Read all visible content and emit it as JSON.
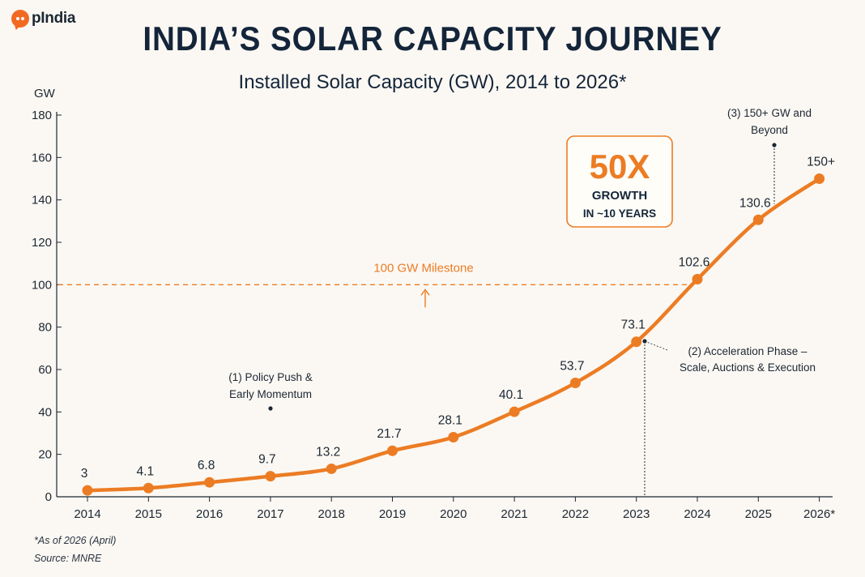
{
  "logo": {
    "text": "pIndia",
    "icon": "chat-bubble-icon"
  },
  "chart_data": {
    "type": "line",
    "title": "INDIA’S SOLAR CAPACITY JOURNEY",
    "subtitle": "Installed Solar Capacity (GW), 2014 to 2026*",
    "ylabel": "GW",
    "xlabel": "",
    "ylim": [
      0,
      180
    ],
    "yticks": [
      0,
      20,
      40,
      60,
      80,
      100,
      120,
      140,
      160,
      180
    ],
    "categories": [
      "2014",
      "2015",
      "2016",
      "2017",
      "2018",
      "2019",
      "2020",
      "2021",
      "2022",
      "2023",
      "2024",
      "2025",
      "2026*"
    ],
    "values": [
      3,
      4.1,
      6.8,
      9.7,
      13.2,
      21.7,
      28.1,
      40.1,
      53.7,
      73.1,
      102.6,
      130.6,
      150
    ],
    "data_labels": [
      "3",
      "4.1",
      "6.8",
      "9.7",
      "13.2",
      "21.7",
      "28.1",
      "40.1",
      "53.7",
      "73.1",
      "102.6",
      "130.6",
      "150+"
    ],
    "milestone": {
      "value": 100,
      "label": "100 GW Milestone"
    },
    "callout": {
      "big": "50X",
      "line1": "GROWTH",
      "line2": "IN ~10 YEARS"
    },
    "annotations": [
      {
        "lines": [
          "(1) Policy Push &",
          "Early Momentum"
        ]
      },
      {
        "lines": [
          "(2) Acceleration Phase –",
          "Scale, Auctions & Execution"
        ]
      },
      {
        "lines": [
          "(3) 150+ GW and",
          "Beyond"
        ]
      }
    ],
    "grid": false,
    "colors": {
      "line": "#ec7c24",
      "milestone": "#ec7c24",
      "text": "#14253a"
    }
  },
  "footnote": "*As of 2026 (April)",
  "source": "Source: MNRE"
}
